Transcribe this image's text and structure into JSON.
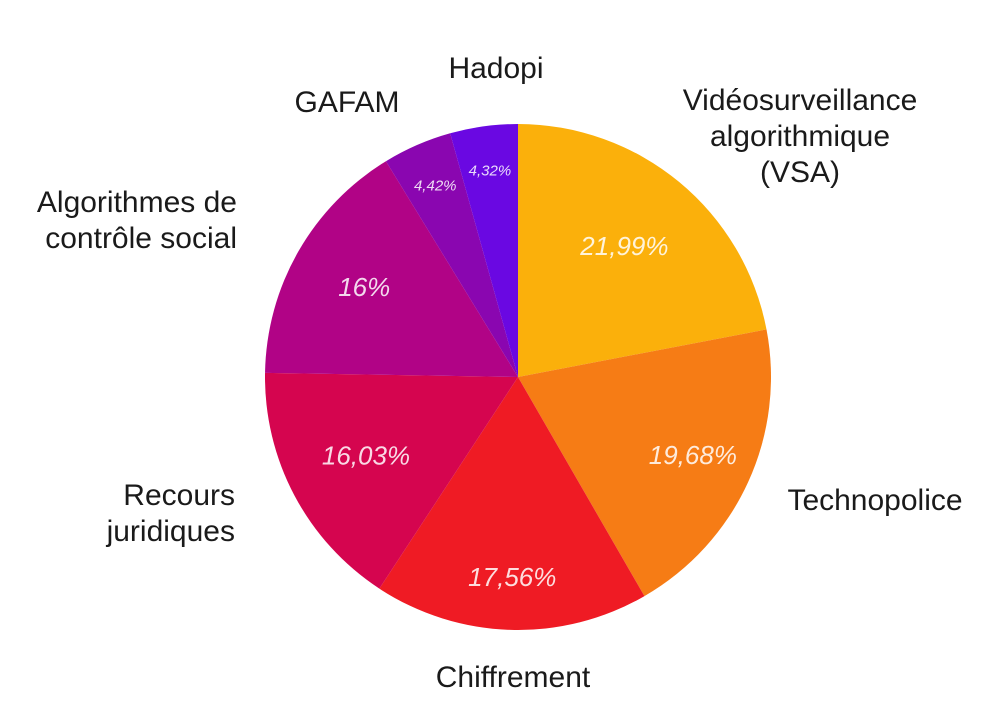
{
  "chart_data": {
    "type": "pie",
    "title": "",
    "slices": [
      {
        "label": "Vidéosurveillance algorithmique (VSA)",
        "value": 21.99,
        "value_label": "21,99%",
        "color": "#FBB00B"
      },
      {
        "label": "Technopolice",
        "value": 19.68,
        "value_label": "19,68%",
        "color": "#F67C15"
      },
      {
        "label": "Chiffrement",
        "value": 17.56,
        "value_label": "17,56%",
        "color": "#EF1B24"
      },
      {
        "label": "Recours juridiques",
        "value": 16.03,
        "value_label": "16,03%",
        "color": "#D5054F"
      },
      {
        "label": "Algorithmes de contrôle social",
        "value": 16.0,
        "value_label": "16%",
        "color": "#B10386"
      },
      {
        "label": "GAFAM",
        "value": 4.42,
        "value_label": "4,42%",
        "color": "#8A06B0"
      },
      {
        "label": "Hadopi",
        "value": 4.32,
        "value_label": "4,32%",
        "color": "#6A08E2"
      }
    ],
    "start_angle": "12 o'clock",
    "direction": "clockwise"
  }
}
